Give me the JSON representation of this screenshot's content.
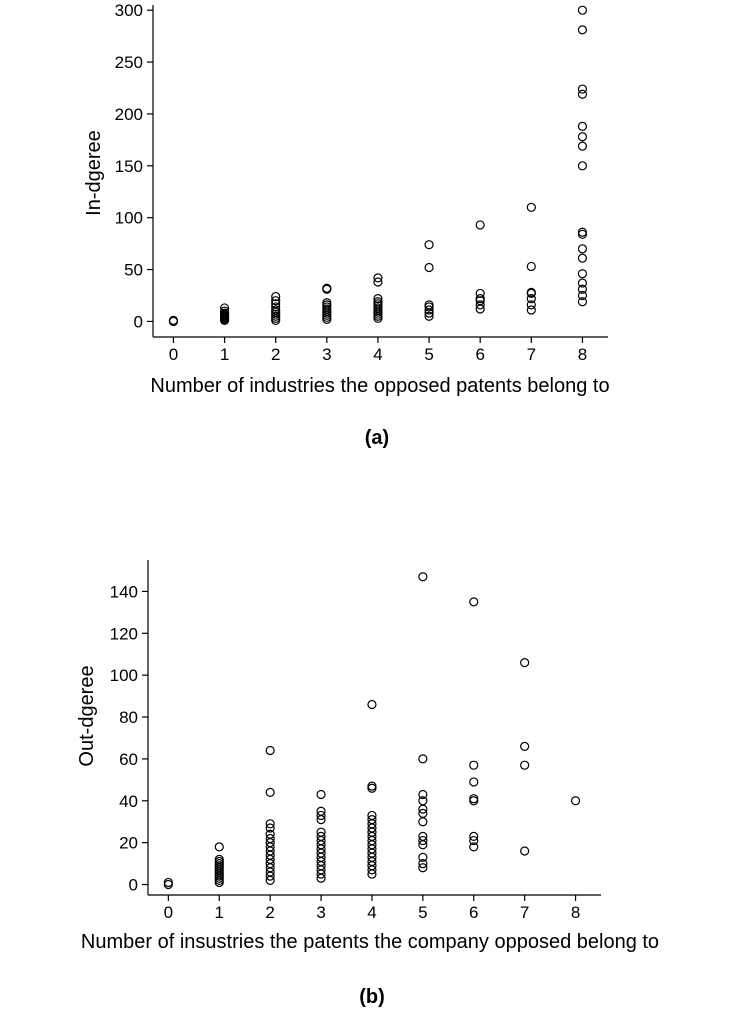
{
  "chart_data": [
    {
      "type": "scatter",
      "panel_label": "(a)",
      "xlabel": "Number of industries the opposed patents belong to",
      "ylabel": "In-dgeree",
      "xlim": [
        -0.4,
        8.5
      ],
      "ylim": [
        -15,
        305
      ],
      "xticks": [
        0,
        1,
        2,
        3,
        4,
        5,
        6,
        7,
        8
      ],
      "yticks": [
        0,
        50,
        100,
        150,
        200,
        250,
        300
      ],
      "grid": false,
      "marker": "open-circle",
      "points": [
        {
          "x": 0,
          "y": 0
        },
        {
          "x": 0,
          "y": 1
        },
        {
          "x": 1,
          "y": 1
        },
        {
          "x": 1,
          "y": 2
        },
        {
          "x": 1,
          "y": 3
        },
        {
          "x": 1,
          "y": 4
        },
        {
          "x": 1,
          "y": 5
        },
        {
          "x": 1,
          "y": 6
        },
        {
          "x": 1,
          "y": 7
        },
        {
          "x": 1,
          "y": 8
        },
        {
          "x": 1,
          "y": 10
        },
        {
          "x": 1,
          "y": 13
        },
        {
          "x": 2,
          "y": 1
        },
        {
          "x": 2,
          "y": 3
        },
        {
          "x": 2,
          "y": 5
        },
        {
          "x": 2,
          "y": 7
        },
        {
          "x": 2,
          "y": 9
        },
        {
          "x": 2,
          "y": 11
        },
        {
          "x": 2,
          "y": 14
        },
        {
          "x": 2,
          "y": 17
        },
        {
          "x": 2,
          "y": 20
        },
        {
          "x": 2,
          "y": 24
        },
        {
          "x": 3,
          "y": 2
        },
        {
          "x": 3,
          "y": 4
        },
        {
          "x": 3,
          "y": 6
        },
        {
          "x": 3,
          "y": 8
        },
        {
          "x": 3,
          "y": 10
        },
        {
          "x": 3,
          "y": 12
        },
        {
          "x": 3,
          "y": 14
        },
        {
          "x": 3,
          "y": 16
        },
        {
          "x": 3,
          "y": 18
        },
        {
          "x": 3,
          "y": 31
        },
        {
          "x": 3,
          "y": 32
        },
        {
          "x": 4,
          "y": 3
        },
        {
          "x": 4,
          "y": 5
        },
        {
          "x": 4,
          "y": 7
        },
        {
          "x": 4,
          "y": 9
        },
        {
          "x": 4,
          "y": 11
        },
        {
          "x": 4,
          "y": 13
        },
        {
          "x": 4,
          "y": 15
        },
        {
          "x": 4,
          "y": 17
        },
        {
          "x": 4,
          "y": 19
        },
        {
          "x": 4,
          "y": 22
        },
        {
          "x": 4,
          "y": 38
        },
        {
          "x": 4,
          "y": 42
        },
        {
          "x": 5,
          "y": 5
        },
        {
          "x": 5,
          "y": 8
        },
        {
          "x": 5,
          "y": 11
        },
        {
          "x": 5,
          "y": 14
        },
        {
          "x": 5,
          "y": 16
        },
        {
          "x": 5,
          "y": 52
        },
        {
          "x": 5,
          "y": 74
        },
        {
          "x": 6,
          "y": 12
        },
        {
          "x": 6,
          "y": 16
        },
        {
          "x": 6,
          "y": 20
        },
        {
          "x": 6,
          "y": 22
        },
        {
          "x": 6,
          "y": 27
        },
        {
          "x": 6,
          "y": 93
        },
        {
          "x": 7,
          "y": 11
        },
        {
          "x": 7,
          "y": 16
        },
        {
          "x": 7,
          "y": 22
        },
        {
          "x": 7,
          "y": 27
        },
        {
          "x": 7,
          "y": 28
        },
        {
          "x": 7,
          "y": 53
        },
        {
          "x": 7,
          "y": 110
        },
        {
          "x": 8,
          "y": 19
        },
        {
          "x": 8,
          "y": 25
        },
        {
          "x": 8,
          "y": 31
        },
        {
          "x": 8,
          "y": 37
        },
        {
          "x": 8,
          "y": 46
        },
        {
          "x": 8,
          "y": 61
        },
        {
          "x": 8,
          "y": 70
        },
        {
          "x": 8,
          "y": 84
        },
        {
          "x": 8,
          "y": 86
        },
        {
          "x": 8,
          "y": 150
        },
        {
          "x": 8,
          "y": 169
        },
        {
          "x": 8,
          "y": 178
        },
        {
          "x": 8,
          "y": 188
        },
        {
          "x": 8,
          "y": 219
        },
        {
          "x": 8,
          "y": 224
        },
        {
          "x": 8,
          "y": 281
        },
        {
          "x": 8,
          "y": 300
        }
      ]
    },
    {
      "type": "scatter",
      "panel_label": "(b)",
      "xlabel": "Number of insustries the patents the company opposed belong to",
      "ylabel": "Out-dgeree",
      "xlim": [
        -0.4,
        8.5
      ],
      "ylim": [
        -5,
        155
      ],
      "xticks": [
        0,
        1,
        2,
        3,
        4,
        5,
        6,
        7,
        8
      ],
      "yticks": [
        0,
        20,
        40,
        60,
        80,
        100,
        120,
        140
      ],
      "grid": false,
      "marker": "open-circle",
      "points": [
        {
          "x": 0,
          "y": 0
        },
        {
          "x": 0,
          "y": 1
        },
        {
          "x": 1,
          "y": 1
        },
        {
          "x": 1,
          "y": 2
        },
        {
          "x": 1,
          "y": 3
        },
        {
          "x": 1,
          "y": 4
        },
        {
          "x": 1,
          "y": 5
        },
        {
          "x": 1,
          "y": 6
        },
        {
          "x": 1,
          "y": 7
        },
        {
          "x": 1,
          "y": 8
        },
        {
          "x": 1,
          "y": 9
        },
        {
          "x": 1,
          "y": 10
        },
        {
          "x": 1,
          "y": 11
        },
        {
          "x": 1,
          "y": 12
        },
        {
          "x": 1,
          "y": 18
        },
        {
          "x": 2,
          "y": 2
        },
        {
          "x": 2,
          "y": 4
        },
        {
          "x": 2,
          "y": 6
        },
        {
          "x": 2,
          "y": 8
        },
        {
          "x": 2,
          "y": 10
        },
        {
          "x": 2,
          "y": 12
        },
        {
          "x": 2,
          "y": 14
        },
        {
          "x": 2,
          "y": 16
        },
        {
          "x": 2,
          "y": 18
        },
        {
          "x": 2,
          "y": 20
        },
        {
          "x": 2,
          "y": 22
        },
        {
          "x": 2,
          "y": 24
        },
        {
          "x": 2,
          "y": 27
        },
        {
          "x": 2,
          "y": 29
        },
        {
          "x": 2,
          "y": 44
        },
        {
          "x": 2,
          "y": 64
        },
        {
          "x": 3,
          "y": 3
        },
        {
          "x": 3,
          "y": 5
        },
        {
          "x": 3,
          "y": 7
        },
        {
          "x": 3,
          "y": 9
        },
        {
          "x": 3,
          "y": 11
        },
        {
          "x": 3,
          "y": 13
        },
        {
          "x": 3,
          "y": 15
        },
        {
          "x": 3,
          "y": 17
        },
        {
          "x": 3,
          "y": 19
        },
        {
          "x": 3,
          "y": 21
        },
        {
          "x": 3,
          "y": 23
        },
        {
          "x": 3,
          "y": 25
        },
        {
          "x": 3,
          "y": 31
        },
        {
          "x": 3,
          "y": 33
        },
        {
          "x": 3,
          "y": 35
        },
        {
          "x": 3,
          "y": 43
        },
        {
          "x": 4,
          "y": 5
        },
        {
          "x": 4,
          "y": 7
        },
        {
          "x": 4,
          "y": 9
        },
        {
          "x": 4,
          "y": 11
        },
        {
          "x": 4,
          "y": 13
        },
        {
          "x": 4,
          "y": 15
        },
        {
          "x": 4,
          "y": 17
        },
        {
          "x": 4,
          "y": 19
        },
        {
          "x": 4,
          "y": 21
        },
        {
          "x": 4,
          "y": 23
        },
        {
          "x": 4,
          "y": 25
        },
        {
          "x": 4,
          "y": 27
        },
        {
          "x": 4,
          "y": 29
        },
        {
          "x": 4,
          "y": 31
        },
        {
          "x": 4,
          "y": 33
        },
        {
          "x": 4,
          "y": 46
        },
        {
          "x": 4,
          "y": 47
        },
        {
          "x": 4,
          "y": 86
        },
        {
          "x": 5,
          "y": 8
        },
        {
          "x": 5,
          "y": 10
        },
        {
          "x": 5,
          "y": 13
        },
        {
          "x": 5,
          "y": 19
        },
        {
          "x": 5,
          "y": 21
        },
        {
          "x": 5,
          "y": 23
        },
        {
          "x": 5,
          "y": 30
        },
        {
          "x": 5,
          "y": 34
        },
        {
          "x": 5,
          "y": 36
        },
        {
          "x": 5,
          "y": 40
        },
        {
          "x": 5,
          "y": 43
        },
        {
          "x": 5,
          "y": 60
        },
        {
          "x": 5,
          "y": 147
        },
        {
          "x": 6,
          "y": 18
        },
        {
          "x": 6,
          "y": 21
        },
        {
          "x": 6,
          "y": 23
        },
        {
          "x": 6,
          "y": 40
        },
        {
          "x": 6,
          "y": 41
        },
        {
          "x": 6,
          "y": 49
        },
        {
          "x": 6,
          "y": 57
        },
        {
          "x": 6,
          "y": 135
        },
        {
          "x": 7,
          "y": 16
        },
        {
          "x": 7,
          "y": 57
        },
        {
          "x": 7,
          "y": 66
        },
        {
          "x": 7,
          "y": 106
        },
        {
          "x": 8,
          "y": 40
        }
      ]
    }
  ]
}
